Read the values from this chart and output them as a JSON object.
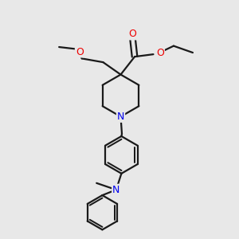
{
  "bg_color": "#e8e8e8",
  "bond_color": "#1a1a1a",
  "N_color": "#0000ee",
  "O_color": "#ee0000",
  "lw": 1.6,
  "fig_w": 3.0,
  "fig_h": 3.0,
  "dpi": 100,
  "xlim": [
    0,
    10
  ],
  "ylim": [
    0,
    10
  ]
}
